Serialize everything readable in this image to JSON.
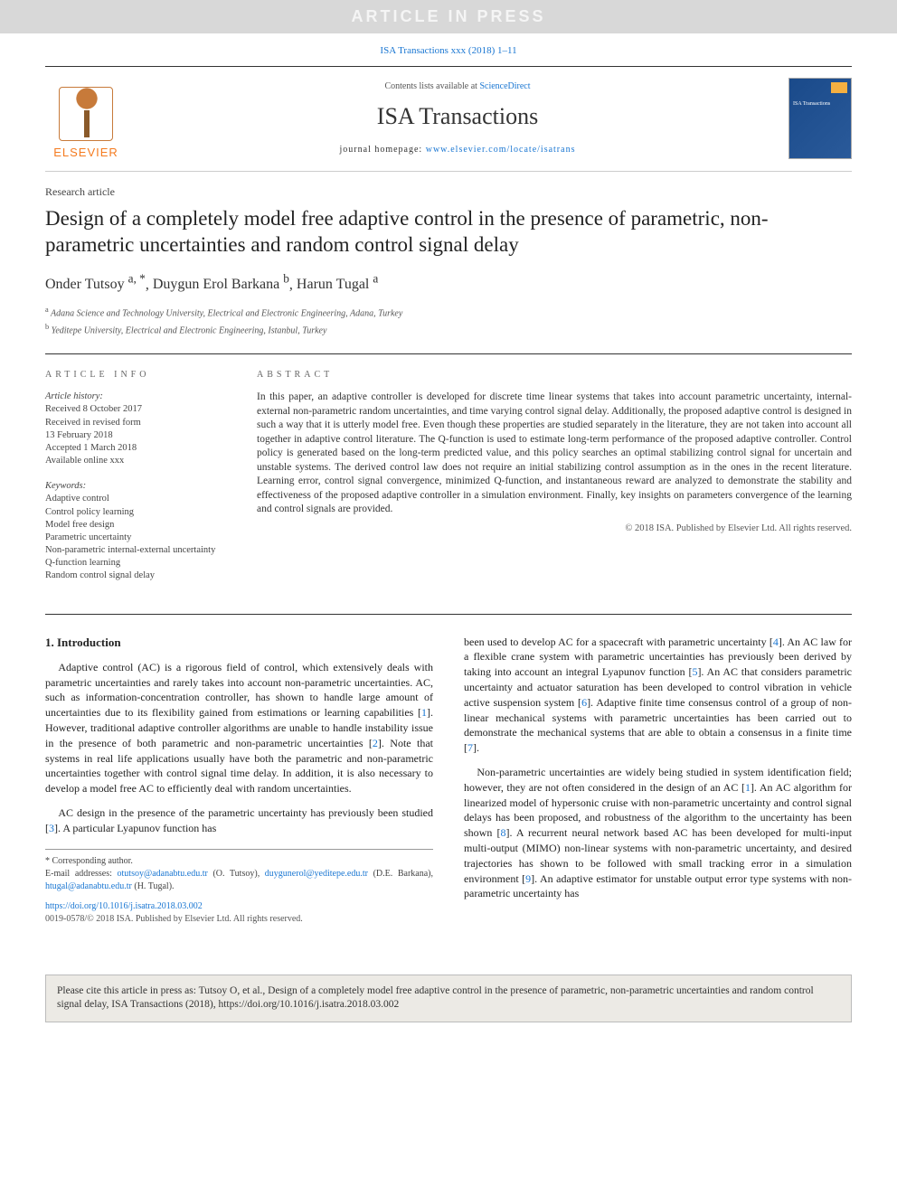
{
  "colors": {
    "link": "#1976d2",
    "banner_bg": "#d8d8d8",
    "banner_text": "#f5f5f5",
    "elsevier_orange": "#f47b20",
    "cover_bg_start": "#1a4a8a",
    "cover_bg_end": "#2a5a9a",
    "citebox_bg": "#eceae5"
  },
  "typography": {
    "body_font": "Georgia, 'Times New Roman', serif",
    "title_size_pt": 23,
    "journal_name_size_pt": 26,
    "abstract_size_pt": 11.5,
    "body_size_pt": 12
  },
  "banner": "ARTICLE IN PRESS",
  "citation_top": {
    "prefix": "ISA Transactions xxx (2018) 1–11",
    "href": "#"
  },
  "header": {
    "publisher_logo_text": "ELSEVIER",
    "contents_prefix": "Contents lists available at ",
    "contents_link": "ScienceDirect",
    "journal_name": "ISA Transactions",
    "homepage_label": "journal homepage: ",
    "homepage_url": "www.elsevier.com/locate/isatrans",
    "cover_caption": "ISA Transactions"
  },
  "article": {
    "type": "Research article",
    "title": "Design of a completely model free adaptive control in the presence of parametric, non-parametric uncertainties and random control signal delay",
    "authors_html": [
      {
        "name": "Onder Tutsoy",
        "sup": "a, *"
      },
      {
        "name": "Duygun Erol Barkana",
        "sup": "b"
      },
      {
        "name": "Harun Tugal",
        "sup": "a"
      }
    ],
    "affiliations": [
      {
        "sup": "a",
        "text": "Adana Science and Technology University, Electrical and Electronic Engineering, Adana, Turkey"
      },
      {
        "sup": "b",
        "text": "Yeditepe University, Electrical and Electronic Engineering, Istanbul, Turkey"
      }
    ]
  },
  "info": {
    "label": "ARTICLE INFO",
    "history_head": "Article history:",
    "history": [
      "Received 8 October 2017",
      "Received in revised form",
      "13 February 2018",
      "Accepted 1 March 2018",
      "Available online xxx"
    ],
    "keywords_head": "Keywords:",
    "keywords": [
      "Adaptive control",
      "Control policy learning",
      "Model free design",
      "Parametric uncertainty",
      "Non-parametric internal-external uncertainty",
      "Q-function learning",
      "Random control signal delay"
    ]
  },
  "abstract": {
    "label": "ABSTRACT",
    "text": "In this paper, an adaptive controller is developed for discrete time linear systems that takes into account parametric uncertainty, internal-external non-parametric random uncertainties, and time varying control signal delay. Additionally, the proposed adaptive control is designed in such a way that it is utterly model free. Even though these properties are studied separately in the literature, they are not taken into account all together in adaptive control literature. The Q-function is used to estimate long-term performance of the proposed adaptive controller. Control policy is generated based on the long-term predicted value, and this policy searches an optimal stabilizing control signal for uncertain and unstable systems. The derived control law does not require an initial stabilizing control assumption as in the ones in the recent literature. Learning error, control signal convergence, minimized Q-function, and instantaneous reward are analyzed to demonstrate the stability and effectiveness of the proposed adaptive controller in a simulation environment. Finally, key insights on parameters convergence of the learning and control signals are provided.",
    "copyright": "© 2018 ISA. Published by Elsevier Ltd. All rights reserved."
  },
  "body": {
    "section_heading": "1. Introduction",
    "col1_paras": [
      "Adaptive control (AC) is a rigorous field of control, which extensively deals with parametric uncertainties and rarely takes into account non-parametric uncertainties. AC, such as information-concentration controller, has shown to handle large amount of uncertainties due to its flexibility gained from estimations or learning capabilities [1]. However, traditional adaptive controller algorithms are unable to handle instability issue in the presence of both parametric and non-parametric uncertainties [2]. Note that systems in real life applications usually have both the parametric and non-parametric uncertainties together with control signal time delay. In addition, it is also necessary to develop a model free AC to efficiently deal with random uncertainties.",
      "AC design in the presence of the parametric uncertainty has previously been studied [3]. A particular Lyapunov function has"
    ],
    "col2_paras": [
      "been used to develop AC for a spacecraft with parametric uncertainty [4]. An AC law for a flexible crane system with parametric uncertainties has previously been derived by taking into account an integral Lyapunov function [5]. An AC that considers parametric uncertainty and actuator saturation has been developed to control vibration in vehicle active suspension system [6]. Adaptive finite time consensus control of a group of non-linear mechanical systems with parametric uncertainties has been carried out to demonstrate the mechanical systems that are able to obtain a consensus in a finite time [7].",
      "Non-parametric uncertainties are widely being studied in system identification field; however, they are not often considered in the design of an AC [1]. An AC algorithm for linearized model of hypersonic cruise with non-parametric uncertainty and control signal delays has been proposed, and robustness of the algorithm to the uncertainty has been shown [8]. A recurrent neural network based AC has been developed for multi-input multi-output (MIMO) non-linear systems with non-parametric uncertainty, and desired trajectories has shown to be followed with small tracking error in a simulation environment [9]. An adaptive estimator for unstable output error type systems with non-parametric uncertainty has"
    ],
    "refs": [
      "1",
      "2",
      "3",
      "4",
      "5",
      "6",
      "7",
      "8",
      "9"
    ]
  },
  "footnotes": {
    "corr": "* Corresponding author.",
    "emails_label": "E-mail addresses: ",
    "emails": [
      {
        "addr": "otutsoy@adanabtu.edu.tr",
        "who": "(O. Tutsoy)"
      },
      {
        "addr": "duygunerol@yeditepe.edu.tr",
        "who": "(D.E. Barkana)"
      },
      {
        "addr": "htugal@adanabtu.edu.tr",
        "who": "(H. Tugal)"
      }
    ]
  },
  "doi": {
    "url": "https://doi.org/10.1016/j.isatra.2018.03.002",
    "issn": "0019-0578/© 2018 ISA. Published by Elsevier Ltd. All rights reserved."
  },
  "citebox": "Please cite this article in press as: Tutsoy O, et al., Design of a completely model free adaptive control in the presence of parametric, non-parametric uncertainties and random control signal delay, ISA Transactions (2018), https://doi.org/10.1016/j.isatra.2018.03.002"
}
